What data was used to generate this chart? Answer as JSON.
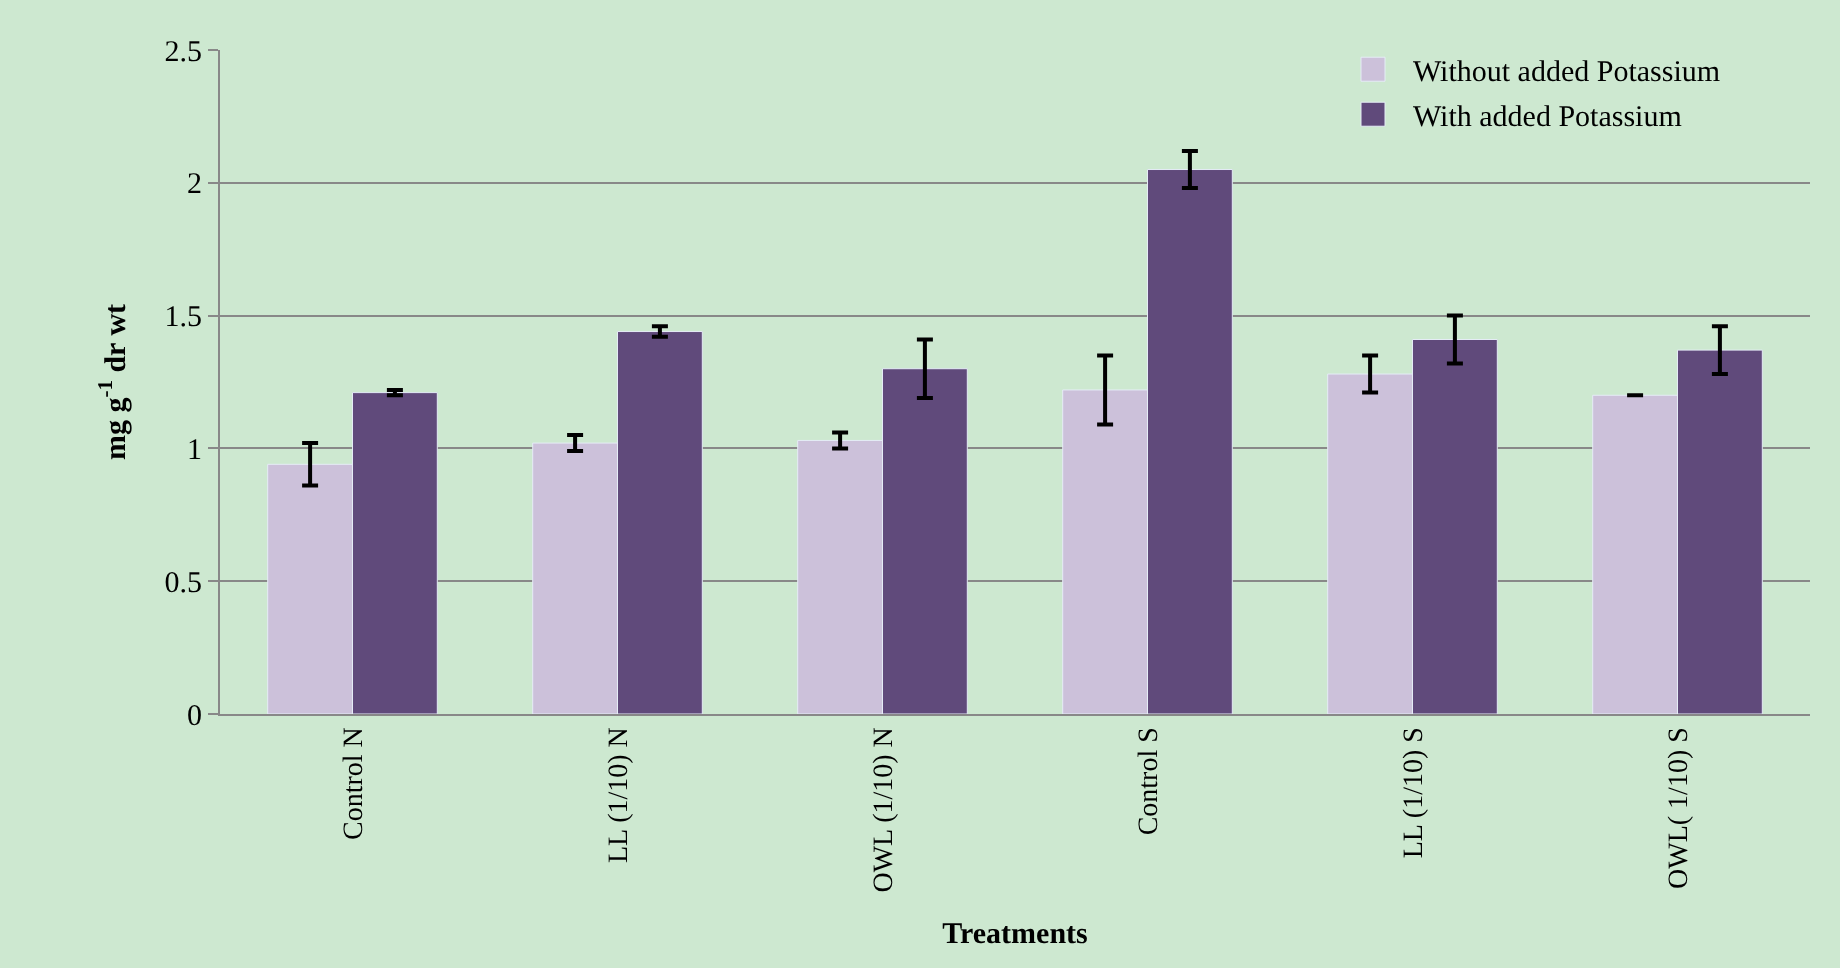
{
  "chart_data": {
    "type": "bar",
    "xlabel": "Treatments",
    "ylabel": "mg g$^{-1}$ dr wt",
    "categories": [
      "Control N",
      "LL (1/10) N",
      "OWL (1/10) N",
      "Control S",
      "LL (1/10) S",
      "OWL( 1/10) S"
    ],
    "series": [
      {
        "name": "Without added Potassium",
        "color": "#ccc1da",
        "values": [
          0.94,
          1.02,
          1.03,
          1.22,
          1.28,
          1.2
        ],
        "errors": [
          0.08,
          0.03,
          0.03,
          0.13,
          0.07,
          null
        ]
      },
      {
        "name": "With added Potassium",
        "color": "#604a7b",
        "values": [
          1.21,
          1.44,
          1.3,
          2.05,
          1.41,
          1.37
        ],
        "errors": [
          0.01,
          0.02,
          0.11,
          0.07,
          0.09,
          0.09
        ]
      }
    ],
    "ylim": [
      0,
      2.5
    ],
    "yticks": [
      0,
      0.5,
      1,
      1.5,
      2,
      2.5
    ],
    "grid": "y",
    "legend": "top right"
  }
}
